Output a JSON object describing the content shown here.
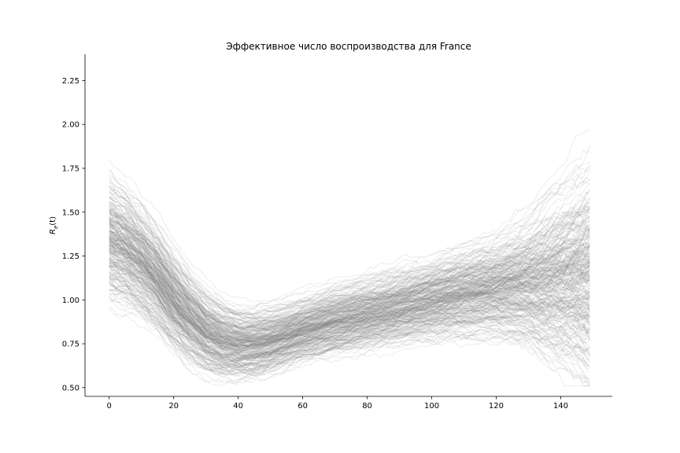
{
  "chart_data": {
    "type": "line",
    "title": "Эффективное число воспроизводства для France",
    "xlabel": "",
    "ylabel": "R_e(t)",
    "ylabel_main": "R",
    "ylabel_sub": "e",
    "ylabel_tail": "(t)",
    "xlim": [
      -7.5,
      156
    ],
    "ylim": [
      0.45,
      2.4
    ],
    "xticks": [
      0,
      20,
      40,
      60,
      80,
      100,
      120,
      140
    ],
    "yticks": [
      0.5,
      0.75,
      1.0,
      1.25,
      1.5,
      1.75,
      2.0,
      2.25
    ],
    "ytick_labels": [
      "0.50",
      "0.75",
      "1.00",
      "1.25",
      "1.50",
      "1.75",
      "2.00",
      "2.25"
    ],
    "xtick_labels": [
      "0",
      "20",
      "40",
      "60",
      "80",
      "100",
      "120",
      "140"
    ],
    "grid": false,
    "legend": "none",
    "line_color": "#808080",
    "line_opacity": 0.15,
    "n_trajectories": 300,
    "x_start": 0,
    "x_end": 149,
    "central_trend": {
      "x": [
        0,
        5,
        10,
        15,
        20,
        25,
        30,
        35,
        40,
        45,
        50,
        55,
        60,
        70,
        80,
        90,
        100,
        110,
        120,
        130,
        140,
        149
      ],
      "y": [
        1.35,
        1.3,
        1.22,
        1.12,
        1.0,
        0.9,
        0.82,
        0.77,
        0.75,
        0.75,
        0.77,
        0.8,
        0.83,
        0.88,
        0.92,
        0.96,
        1.0,
        1.04,
        1.07,
        1.1,
        1.13,
        1.15
      ]
    },
    "spread_envelope": {
      "x": [
        0,
        20,
        40,
        60,
        80,
        100,
        120,
        130,
        140,
        149
      ],
      "y": [
        0.16,
        0.12,
        0.09,
        0.08,
        0.09,
        0.1,
        0.12,
        0.15,
        0.2,
        0.25
      ]
    }
  }
}
